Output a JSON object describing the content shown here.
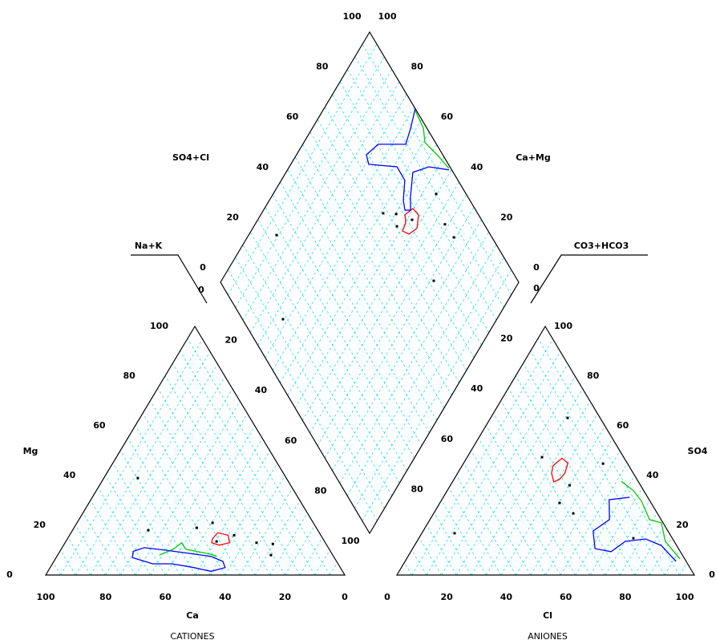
{
  "chart_data": {
    "type": "piper",
    "grid": true,
    "grid_color": "#00d8e8",
    "point_color": "#000000",
    "cation": {
      "title": "CATIONES",
      "x_label": "Ca",
      "y_label": "Mg",
      "corner_label": "Na+K",
      "xticks": [
        100,
        80,
        60,
        40,
        20,
        0
      ],
      "yticks": [
        0,
        20,
        40,
        60,
        80,
        100
      ],
      "points": {
        "ca": [
          49.7,
          56.7,
          33.7,
          36.1,
          29,
          23,
          17.8,
          20.7,
          40
        ],
        "mg": [
          39,
          18,
          21,
          13.5,
          16,
          13,
          12.5,
          8,
          19
        ]
      },
      "contours": [
        {
          "color": "#ff0000",
          "closed": true,
          "ca": [
            37,
            34,
            31,
            32,
            36,
            38
          ],
          "mg": [
            14.5,
            17,
            16,
            13,
            12,
            13
          ]
        },
        {
          "color": "#00cc00",
          "closed": false,
          "ca": [
            58,
            52,
            48,
            48,
            45,
            41,
            39
          ],
          "mg": [
            8,
            10.5,
            13,
            10.5,
            9.5,
            8.5,
            7.5
          ]
        },
        {
          "color": "#0000ff",
          "closed": true,
          "ca": [
            66,
            61.5,
            55,
            46.5,
            41,
            38,
            38.5,
            44,
            49,
            55.5,
            62,
            67.5
          ],
          "mg": [
            9.5,
            11,
            10,
            8.5,
            7.5,
            5.5,
            3,
            1.5,
            3,
            4.5,
            4.5,
            7
          ]
        }
      ]
    },
    "anion": {
      "title": "ANIONES",
      "x_label": "Cl",
      "y_label": "SO4",
      "corner_label": "CO3+HCO3",
      "xticks": [
        0,
        20,
        40,
        60,
        80,
        100
      ],
      "yticks": [
        0,
        20,
        40,
        60,
        80,
        100
      ],
      "points": {
        "cl": [
          25.8,
          25.1,
          40,
          46.9,
          46.9,
          40.2,
          11,
          72.1
        ],
        "so4": [
          63.2,
          47.4,
          36.1,
          44.8,
          24.8,
          29,
          16.8,
          14.8
        ]
      },
      "contours": [
        {
          "color": "#ff0000",
          "closed": true,
          "cl": [
            30.5,
            32,
            35,
            36,
            35.5,
            34,
            31.5
          ],
          "so4": [
            44,
            47,
            45,
            41,
            38.5,
            37.5,
            41
          ]
        },
        {
          "color": "#00cc00",
          "closed": false,
          "cl": [
            56.6,
            62.6,
            67.4,
            73.8,
            78.4,
            83.5,
            91.9
          ],
          "so4": [
            37.7,
            33.9,
            29.7,
            22.3,
            21,
            13.5,
            6.5
          ]
        },
        {
          "color": "#0000ff",
          "closed": false,
          "cl": [
            62.6,
            56.2,
            60.3,
            57.1,
            61.3,
            67.3,
            70,
            76.3,
            82.9,
            91.1
          ],
          "so4": [
            31.3,
            30.3,
            22.3,
            17.7,
            10.6,
            9.4,
            13.5,
            14.5,
            11.9,
            5.5
          ]
        }
      ]
    },
    "diamond": {
      "left_label": "SO4+Cl",
      "right_label": "Ca+Mg",
      "upper_left_ticks": [
        0,
        20,
        40,
        60,
        80,
        100
      ],
      "upper_right_ticks": [
        0,
        20,
        40,
        60,
        80,
        100
      ],
      "lower_left_ticks": [
        0,
        20,
        40,
        60,
        80,
        100
      ],
      "lower_right_ticks": [
        0,
        20,
        40,
        60,
        80
      ],
      "points": {
        "cam": [
          90.6,
          71.7,
          54.7,
          52,
          45.3,
          36.3,
          30.7,
          28.8,
          48.2,
          59.2
        ],
        "so4cl": [
          28.2,
          13.6,
          72.5,
          70.3,
          89.9,
          86.8,
          87.2,
          71.8,
          76.7,
          68.3
        ]
      },
      "contours": [
        {
          "color": "#ff0000",
          "closed": true,
          "cam": [
            51.6,
            50.2,
            47,
            44.9,
            46.4,
            49.2,
            49.7
          ],
          "so4cl": [
            75.3,
            79.2,
            79.8,
            76.6,
            72.8,
            71.2,
            73.9
          ]
        },
        {
          "color": "#00cc00",
          "closed": false,
          "cam": [
            68.9,
            62.6,
            59.3,
            52.8,
            46.1
          ],
          "so4cl": [
            99.5,
            98.7,
            96.4,
            98,
            99.3
          ]
        },
        {
          "color": "#0000ff",
          "closed": false,
          "cam": [
            69.3,
            66.9,
            65.4,
            74.6,
            76.5,
            73.8,
            63.8,
            58.5,
            55,
            52.5,
            50.7,
            53.4,
            57.4,
            53.1,
            45.8
          ],
          "so4cl": [
            99.9,
            94.4,
            89.6,
            80.4,
            74.3,
            73.2,
            82.2,
            82.1,
            77.6,
            76.2,
            78.1,
            80.8,
            86.4,
            92.9,
            99
          ]
        }
      ]
    }
  }
}
